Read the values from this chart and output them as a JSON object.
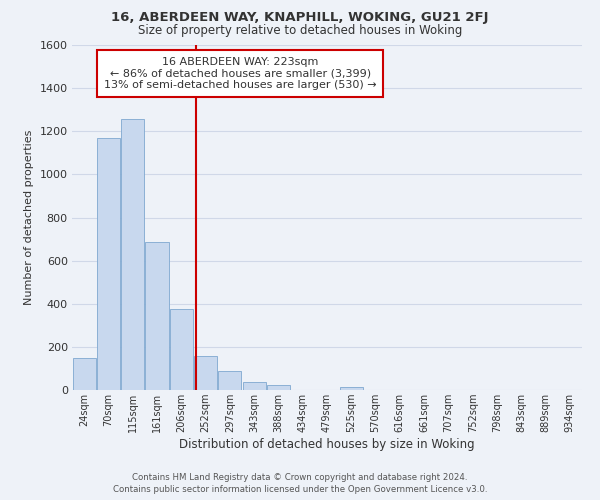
{
  "title": "16, ABERDEEN WAY, KNAPHILL, WOKING, GU21 2FJ",
  "subtitle": "Size of property relative to detached houses in Woking",
  "xlabel": "Distribution of detached houses by size in Woking",
  "ylabel": "Number of detached properties",
  "bar_labels": [
    "24sqm",
    "70sqm",
    "115sqm",
    "161sqm",
    "206sqm",
    "252sqm",
    "297sqm",
    "343sqm",
    "388sqm",
    "434sqm",
    "479sqm",
    "525sqm",
    "570sqm",
    "616sqm",
    "661sqm",
    "707sqm",
    "752sqm",
    "798sqm",
    "843sqm",
    "889sqm",
    "934sqm"
  ],
  "bar_values": [
    148,
    1170,
    1255,
    685,
    375,
    160,
    90,
    38,
    22,
    0,
    0,
    12,
    0,
    0,
    0,
    0,
    0,
    0,
    0,
    0,
    0
  ],
  "bar_color_face": "#c8d8ee",
  "bar_color_edge": "#7fa8d0",
  "vline_x": 4.62,
  "vline_color": "#cc0000",
  "ylim": [
    0,
    1600
  ],
  "yticks": [
    0,
    200,
    400,
    600,
    800,
    1000,
    1200,
    1400,
    1600
  ],
  "annotation_title": "16 ABERDEEN WAY: 223sqm",
  "annotation_line1": "← 86% of detached houses are smaller (3,399)",
  "annotation_line2": "13% of semi-detached houses are larger (530) →",
  "annotation_box_facecolor": "#ffffff",
  "annotation_box_edgecolor": "#cc0000",
  "grid_color": "#d0d8e8",
  "bg_color": "#eef2f8",
  "footer1": "Contains HM Land Registry data © Crown copyright and database right 2024.",
  "footer2": "Contains public sector information licensed under the Open Government Licence v3.0."
}
